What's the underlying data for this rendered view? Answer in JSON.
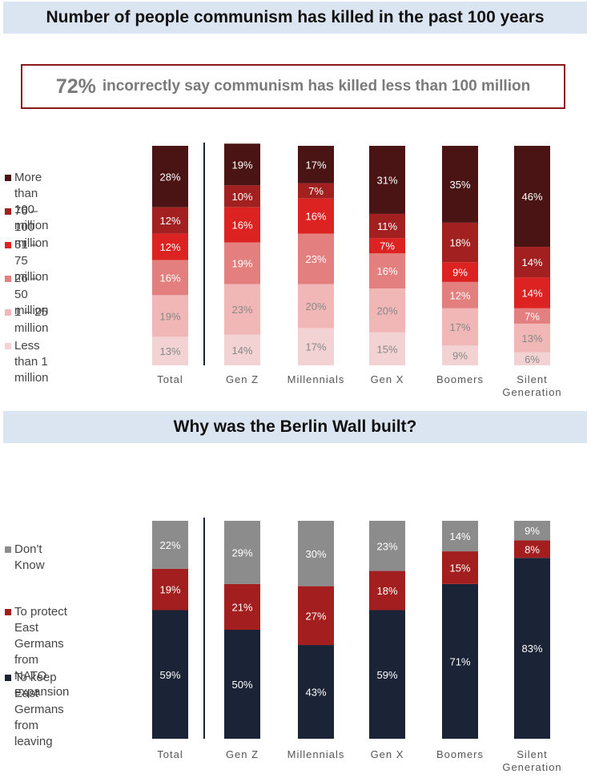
{
  "chart1": {
    "title": "Number of people communism has killed in the past 100 years",
    "callout": {
      "big": "72%",
      "rest": "incorrectly say communism has killed less than 100 million"
    },
    "chart_data": {
      "type": "bar",
      "stacked": true,
      "percent": true,
      "categories": [
        "Total",
        "Gen Z",
        "Millennials",
        "Gen X",
        "Boomers",
        "Silent\nGeneration"
      ],
      "series": [
        {
          "name": "Less than 1 million",
          "color": "#f2d2d2",
          "values": [
            13,
            14,
            17,
            15,
            9,
            6
          ]
        },
        {
          "name": "1 – 25 million",
          "color": "#f1b7b7",
          "values": [
            19,
            23,
            20,
            20,
            17,
            13
          ]
        },
        {
          "name": "26 – 50 million",
          "color": "#e47f7f",
          "values": [
            16,
            19,
            23,
            16,
            12,
            7
          ]
        },
        {
          "name": "51 – 75 million",
          "color": "#dd2222",
          "values": [
            12,
            16,
            16,
            7,
            9,
            14
          ]
        },
        {
          "name": "76 – 100 million",
          "color": "#a32020",
          "values": [
            12,
            10,
            7,
            11,
            18,
            14
          ]
        },
        {
          "name": "More than 100 million",
          "color": "#4a1414",
          "values": [
            28,
            19,
            17,
            31,
            35,
            46
          ]
        }
      ],
      "legend_position": "left"
    }
  },
  "chart2": {
    "title": "Why was the Berlin Wall built?",
    "chart_data": {
      "type": "bar",
      "stacked": true,
      "percent": true,
      "categories": [
        "Total",
        "Gen Z",
        "Millennials",
        "Gen X",
        "Boomers",
        "Silent\nGeneration"
      ],
      "series": [
        {
          "name": "To keep East\nGermans from\nleaving",
          "color": "#1a2436",
          "values": [
            59,
            50,
            43,
            59,
            71,
            83
          ]
        },
        {
          "name": "To protect East\nGermans from\nNATO expansion",
          "color": "#a31f1f",
          "values": [
            19,
            21,
            27,
            18,
            15,
            8
          ]
        },
        {
          "name": "Don't Know",
          "color": "#8c8c8c",
          "values": [
            22,
            29,
            30,
            23,
            14,
            9
          ]
        }
      ],
      "legend_position": "left"
    }
  }
}
